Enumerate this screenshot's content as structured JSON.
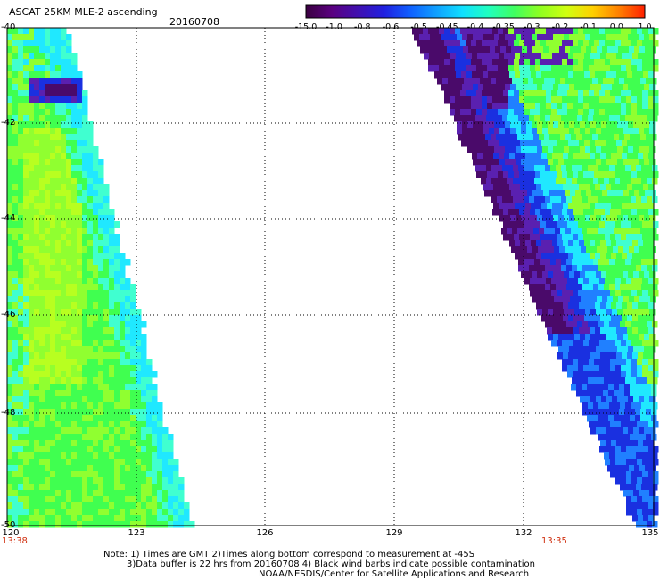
{
  "header": {
    "title": "ASCAT 25KM MLE-2 ascending",
    "date": "20160708"
  },
  "colorbar": {
    "labels": [
      "-15.0",
      "-1.0",
      "-0.8",
      "-0.6",
      "-0.5",
      "-0.45",
      "-0.4",
      "-0.35",
      "-0.3",
      "-0.2",
      "-0.1",
      "0.0",
      "1.0"
    ],
    "colors": [
      "#3a0040",
      "#5a0080",
      "#4010b0",
      "#2020e0",
      "#1060ff",
      "#10a0ff",
      "#10e0ff",
      "#20ffc0",
      "#40ff60",
      "#90ff20",
      "#d0ff10",
      "#ffd000",
      "#ff8000",
      "#ff2000"
    ]
  },
  "axes": {
    "y_ticks": [
      "-40",
      "-42",
      "-44",
      "-46",
      "-48",
      "-50"
    ],
    "x_ticks": [
      "120",
      "123",
      "126",
      "129",
      "132",
      "135"
    ]
  },
  "times": {
    "left": "13:38",
    "right": "13:35"
  },
  "notes": {
    "line1": "Note: 1) Times are GMT 2)Times along bottom correspond to measurement at -45S",
    "line2": "3)Data buffer is 22 hrs from 20160708 4) Black wind barbs indicate possible contamination",
    "line3": "NOAA/NESDIS/Center for Satellite Applications and Research"
  },
  "palette": {
    "dark": "#4a0a6a",
    "purple": "#5a20b0",
    "blue": "#1a30e0",
    "lightblue": "#2080ff",
    "cyan": "#20e8ff",
    "aqua": "#40ffd0",
    "green": "#40ff50",
    "lime": "#90ff30",
    "yellowgreen": "#b8ff20"
  }
}
